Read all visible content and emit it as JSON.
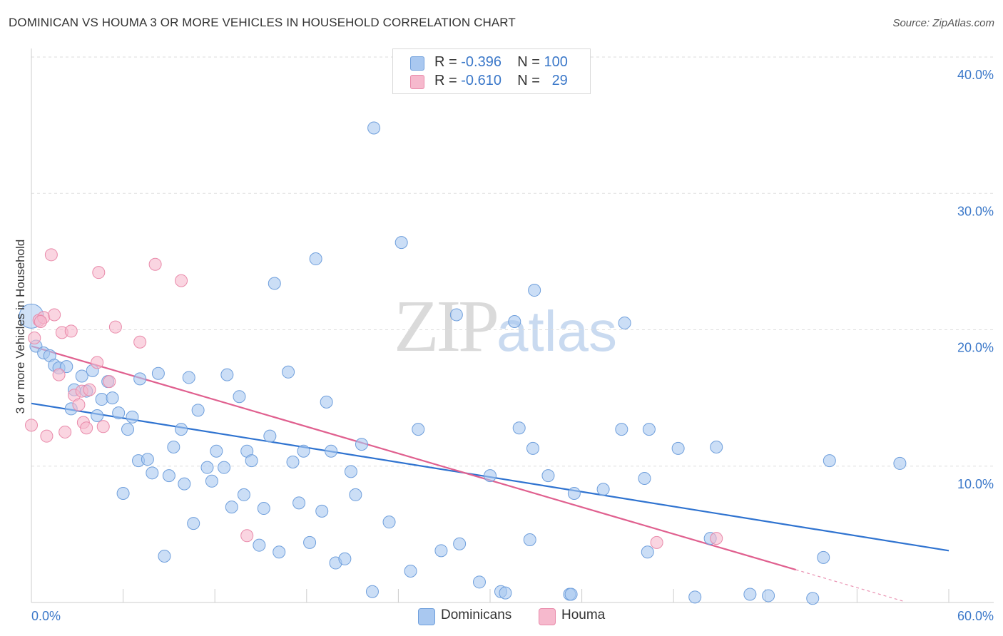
{
  "header": {
    "title": "DOMINICAN VS HOUMA 3 OR MORE VEHICLES IN HOUSEHOLD CORRELATION CHART",
    "source": "Source: ZipAtlas.com"
  },
  "watermark": {
    "zip": "ZIP",
    "atlas": "atlas"
  },
  "legend": {
    "rows": [
      {
        "r_label": "R =",
        "r_value": "-0.396",
        "n_label": "N =",
        "n_value": "100",
        "color": "#a9c8f0"
      },
      {
        "r_label": "R =",
        "r_value": "-0.610",
        "n_label": "N =",
        "n_value": "29",
        "color": "#f6b9cd"
      }
    ]
  },
  "bottom_legend": {
    "items": [
      {
        "label": "Dominicans",
        "color": "#a9c8f0"
      },
      {
        "label": "Houma",
        "color": "#f6b9cd"
      }
    ]
  },
  "colors": {
    "blue_fill": "#a9c8f0",
    "blue_stroke": "#6f9fdc",
    "blue_line": "#2f73d0",
    "pink_fill": "#f6b9cd",
    "pink_stroke": "#e98aaa",
    "pink_line": "#e0608f",
    "grid": "#dddddd",
    "tick_text": "#3b78c9"
  },
  "chart_data": {
    "type": "scatter",
    "title": "DOMINICAN VS HOUMA 3 OR MORE VEHICLES IN HOUSEHOLD CORRELATION CHART",
    "xlabel": "",
    "ylabel": "3 or more Vehicles in Household",
    "xlim": [
      0,
      60
    ],
    "ylim": [
      0,
      40
    ],
    "x_tick_labels": [
      "0.0%",
      "60.0%"
    ],
    "y_tick_labels": [
      "10.0%",
      "20.0%",
      "30.0%",
      "40.0%"
    ],
    "y_ticks": [
      10,
      20,
      30,
      40
    ],
    "grid": true,
    "series": [
      {
        "name": "Dominicans",
        "color": "#a9c8f0",
        "trend": {
          "x": [
            0,
            60
          ],
          "y": [
            14.6,
            3.8
          ]
        },
        "points": [
          [
            0.0,
            21.0
          ],
          [
            0.3,
            18.8
          ],
          [
            0.8,
            18.3
          ],
          [
            1.2,
            18.1
          ],
          [
            1.5,
            17.4
          ],
          [
            1.8,
            17.2
          ],
          [
            2.3,
            17.3
          ],
          [
            2.6,
            14.2
          ],
          [
            2.8,
            15.6
          ],
          [
            3.3,
            16.6
          ],
          [
            3.6,
            15.5
          ],
          [
            4.0,
            17.0
          ],
          [
            4.3,
            13.7
          ],
          [
            4.6,
            14.9
          ],
          [
            5.0,
            16.2
          ],
          [
            5.3,
            15.0
          ],
          [
            5.7,
            13.9
          ],
          [
            6.0,
            8.0
          ],
          [
            6.3,
            12.7
          ],
          [
            6.6,
            13.6
          ],
          [
            7.1,
            16.4
          ],
          [
            7.0,
            10.4
          ],
          [
            7.6,
            10.5
          ],
          [
            7.9,
            9.5
          ],
          [
            8.3,
            16.8
          ],
          [
            8.7,
            3.4
          ],
          [
            9.0,
            9.3
          ],
          [
            9.3,
            11.4
          ],
          [
            9.8,
            12.7
          ],
          [
            10.0,
            8.7
          ],
          [
            10.3,
            16.5
          ],
          [
            10.6,
            5.8
          ],
          [
            10.9,
            14.1
          ],
          [
            11.5,
            9.9
          ],
          [
            11.8,
            8.9
          ],
          [
            12.1,
            11.1
          ],
          [
            12.6,
            9.9
          ],
          [
            12.8,
            16.7
          ],
          [
            13.1,
            7.0
          ],
          [
            13.6,
            15.1
          ],
          [
            13.9,
            7.9
          ],
          [
            14.1,
            11.1
          ],
          [
            14.4,
            10.4
          ],
          [
            14.9,
            4.2
          ],
          [
            15.2,
            6.9
          ],
          [
            15.6,
            12.2
          ],
          [
            15.9,
            23.4
          ],
          [
            16.2,
            3.7
          ],
          [
            16.8,
            16.9
          ],
          [
            17.1,
            10.3
          ],
          [
            17.5,
            7.3
          ],
          [
            17.8,
            11.1
          ],
          [
            18.2,
            4.4
          ],
          [
            18.6,
            25.2
          ],
          [
            19.0,
            6.7
          ],
          [
            19.3,
            14.7
          ],
          [
            19.6,
            11.1
          ],
          [
            19.9,
            2.9
          ],
          [
            20.5,
            3.2
          ],
          [
            20.9,
            9.6
          ],
          [
            21.2,
            7.9
          ],
          [
            21.6,
            11.6
          ],
          [
            22.3,
            0.8
          ],
          [
            22.4,
            34.8
          ],
          [
            23.4,
            5.9
          ],
          [
            24.2,
            26.4
          ],
          [
            24.8,
            2.3
          ],
          [
            25.3,
            12.7
          ],
          [
            26.8,
            3.8
          ],
          [
            27.8,
            21.1
          ],
          [
            28.0,
            4.3
          ],
          [
            29.3,
            1.5
          ],
          [
            30.0,
            9.3
          ],
          [
            30.7,
            0.8
          ],
          [
            31.0,
            0.7
          ],
          [
            31.6,
            20.6
          ],
          [
            31.9,
            12.8
          ],
          [
            32.6,
            4.6
          ],
          [
            32.8,
            11.3
          ],
          [
            32.9,
            22.9
          ],
          [
            33.8,
            9.3
          ],
          [
            35.2,
            0.6
          ],
          [
            35.3,
            0.6
          ],
          [
            35.5,
            8.0
          ],
          [
            37.4,
            8.3
          ],
          [
            38.6,
            12.7
          ],
          [
            38.8,
            20.5
          ],
          [
            40.1,
            9.1
          ],
          [
            40.3,
            3.7
          ],
          [
            40.4,
            12.7
          ],
          [
            42.3,
            11.3
          ],
          [
            43.4,
            0.4
          ],
          [
            44.4,
            4.7
          ],
          [
            44.8,
            11.4
          ],
          [
            47.0,
            0.6
          ],
          [
            48.2,
            0.5
          ],
          [
            51.1,
            0.3
          ],
          [
            51.8,
            3.3
          ],
          [
            52.2,
            10.4
          ],
          [
            56.8,
            10.2
          ]
        ]
      },
      {
        "name": "Houma",
        "color": "#f6b9cd",
        "trend": {
          "x": [
            0,
            50
          ],
          "y": [
            18.8,
            2.4
          ]
        },
        "points": [
          [
            0.0,
            13.0
          ],
          [
            0.2,
            19.4
          ],
          [
            0.5,
            20.7
          ],
          [
            0.8,
            20.9
          ],
          [
            1.0,
            12.2
          ],
          [
            1.3,
            25.5
          ],
          [
            1.5,
            21.1
          ],
          [
            1.8,
            16.7
          ],
          [
            2.0,
            19.8
          ],
          [
            2.2,
            12.5
          ],
          [
            2.6,
            19.9
          ],
          [
            2.8,
            15.2
          ],
          [
            3.1,
            14.5
          ],
          [
            3.3,
            15.5
          ],
          [
            3.4,
            13.2
          ],
          [
            3.6,
            12.8
          ],
          [
            3.8,
            15.6
          ],
          [
            4.3,
            17.6
          ],
          [
            4.4,
            24.2
          ],
          [
            4.7,
            12.9
          ],
          [
            5.1,
            16.2
          ],
          [
            5.5,
            20.2
          ],
          [
            7.1,
            19.1
          ],
          [
            8.1,
            24.8
          ],
          [
            9.8,
            23.6
          ],
          [
            14.1,
            4.9
          ],
          [
            40.9,
            4.4
          ],
          [
            44.8,
            4.7
          ],
          [
            0.6,
            20.6
          ]
        ]
      }
    ]
  }
}
